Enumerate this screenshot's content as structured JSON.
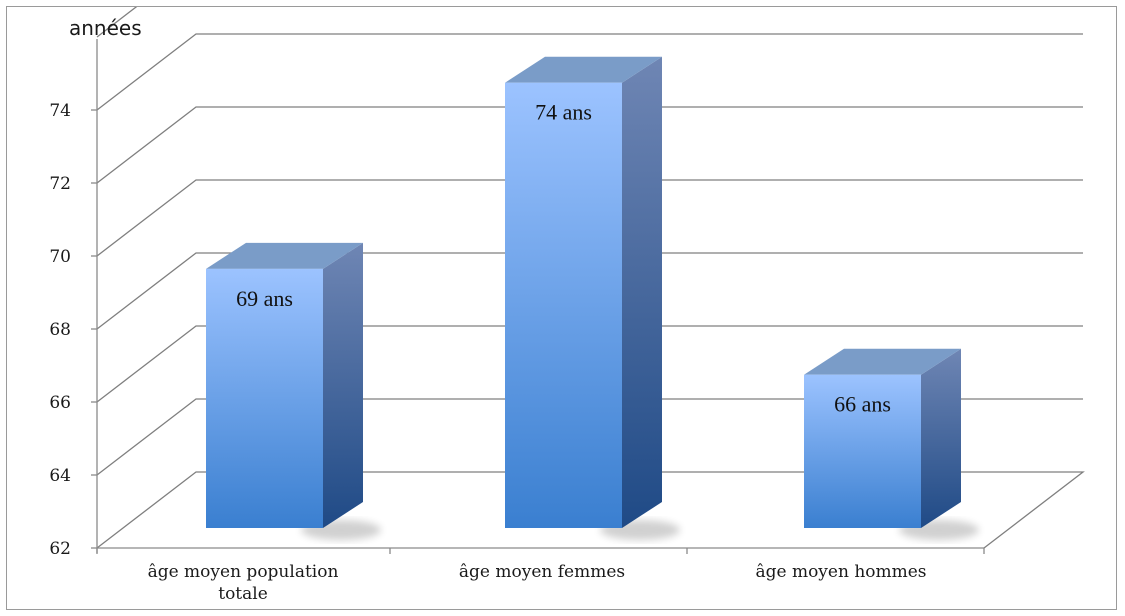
{
  "chart_data": {
    "type": "bar",
    "title": "",
    "ylabel": "années",
    "xlabel": "",
    "categories": [
      "âge moyen population totale",
      "âge moyen femmes",
      "âge moyen hommes"
    ],
    "category_lines": [
      [
        "âge moyen population",
        "totale"
      ],
      [
        "âge moyen femmes"
      ],
      [
        "âge moyen hommes"
      ]
    ],
    "values": [
      69.1,
      74.2,
      66.2
    ],
    "data_labels": [
      "69 ans",
      "74 ans",
      "66 ans"
    ],
    "ylim": [
      62,
      76
    ],
    "yticks": [
      62,
      64,
      66,
      68,
      70,
      72,
      74
    ],
    "grid": true,
    "legend": "none",
    "colors": {
      "bar_front_top": "#9cc3ff",
      "bar_front_bottom": "#3a7fd0",
      "bar_side_top": "#6f86b4",
      "bar_side_bottom": "#1f4a86",
      "bar_top": "#7a9cc8",
      "grid": "#7f7f7f",
      "axis": "#8a8a8a"
    }
  }
}
